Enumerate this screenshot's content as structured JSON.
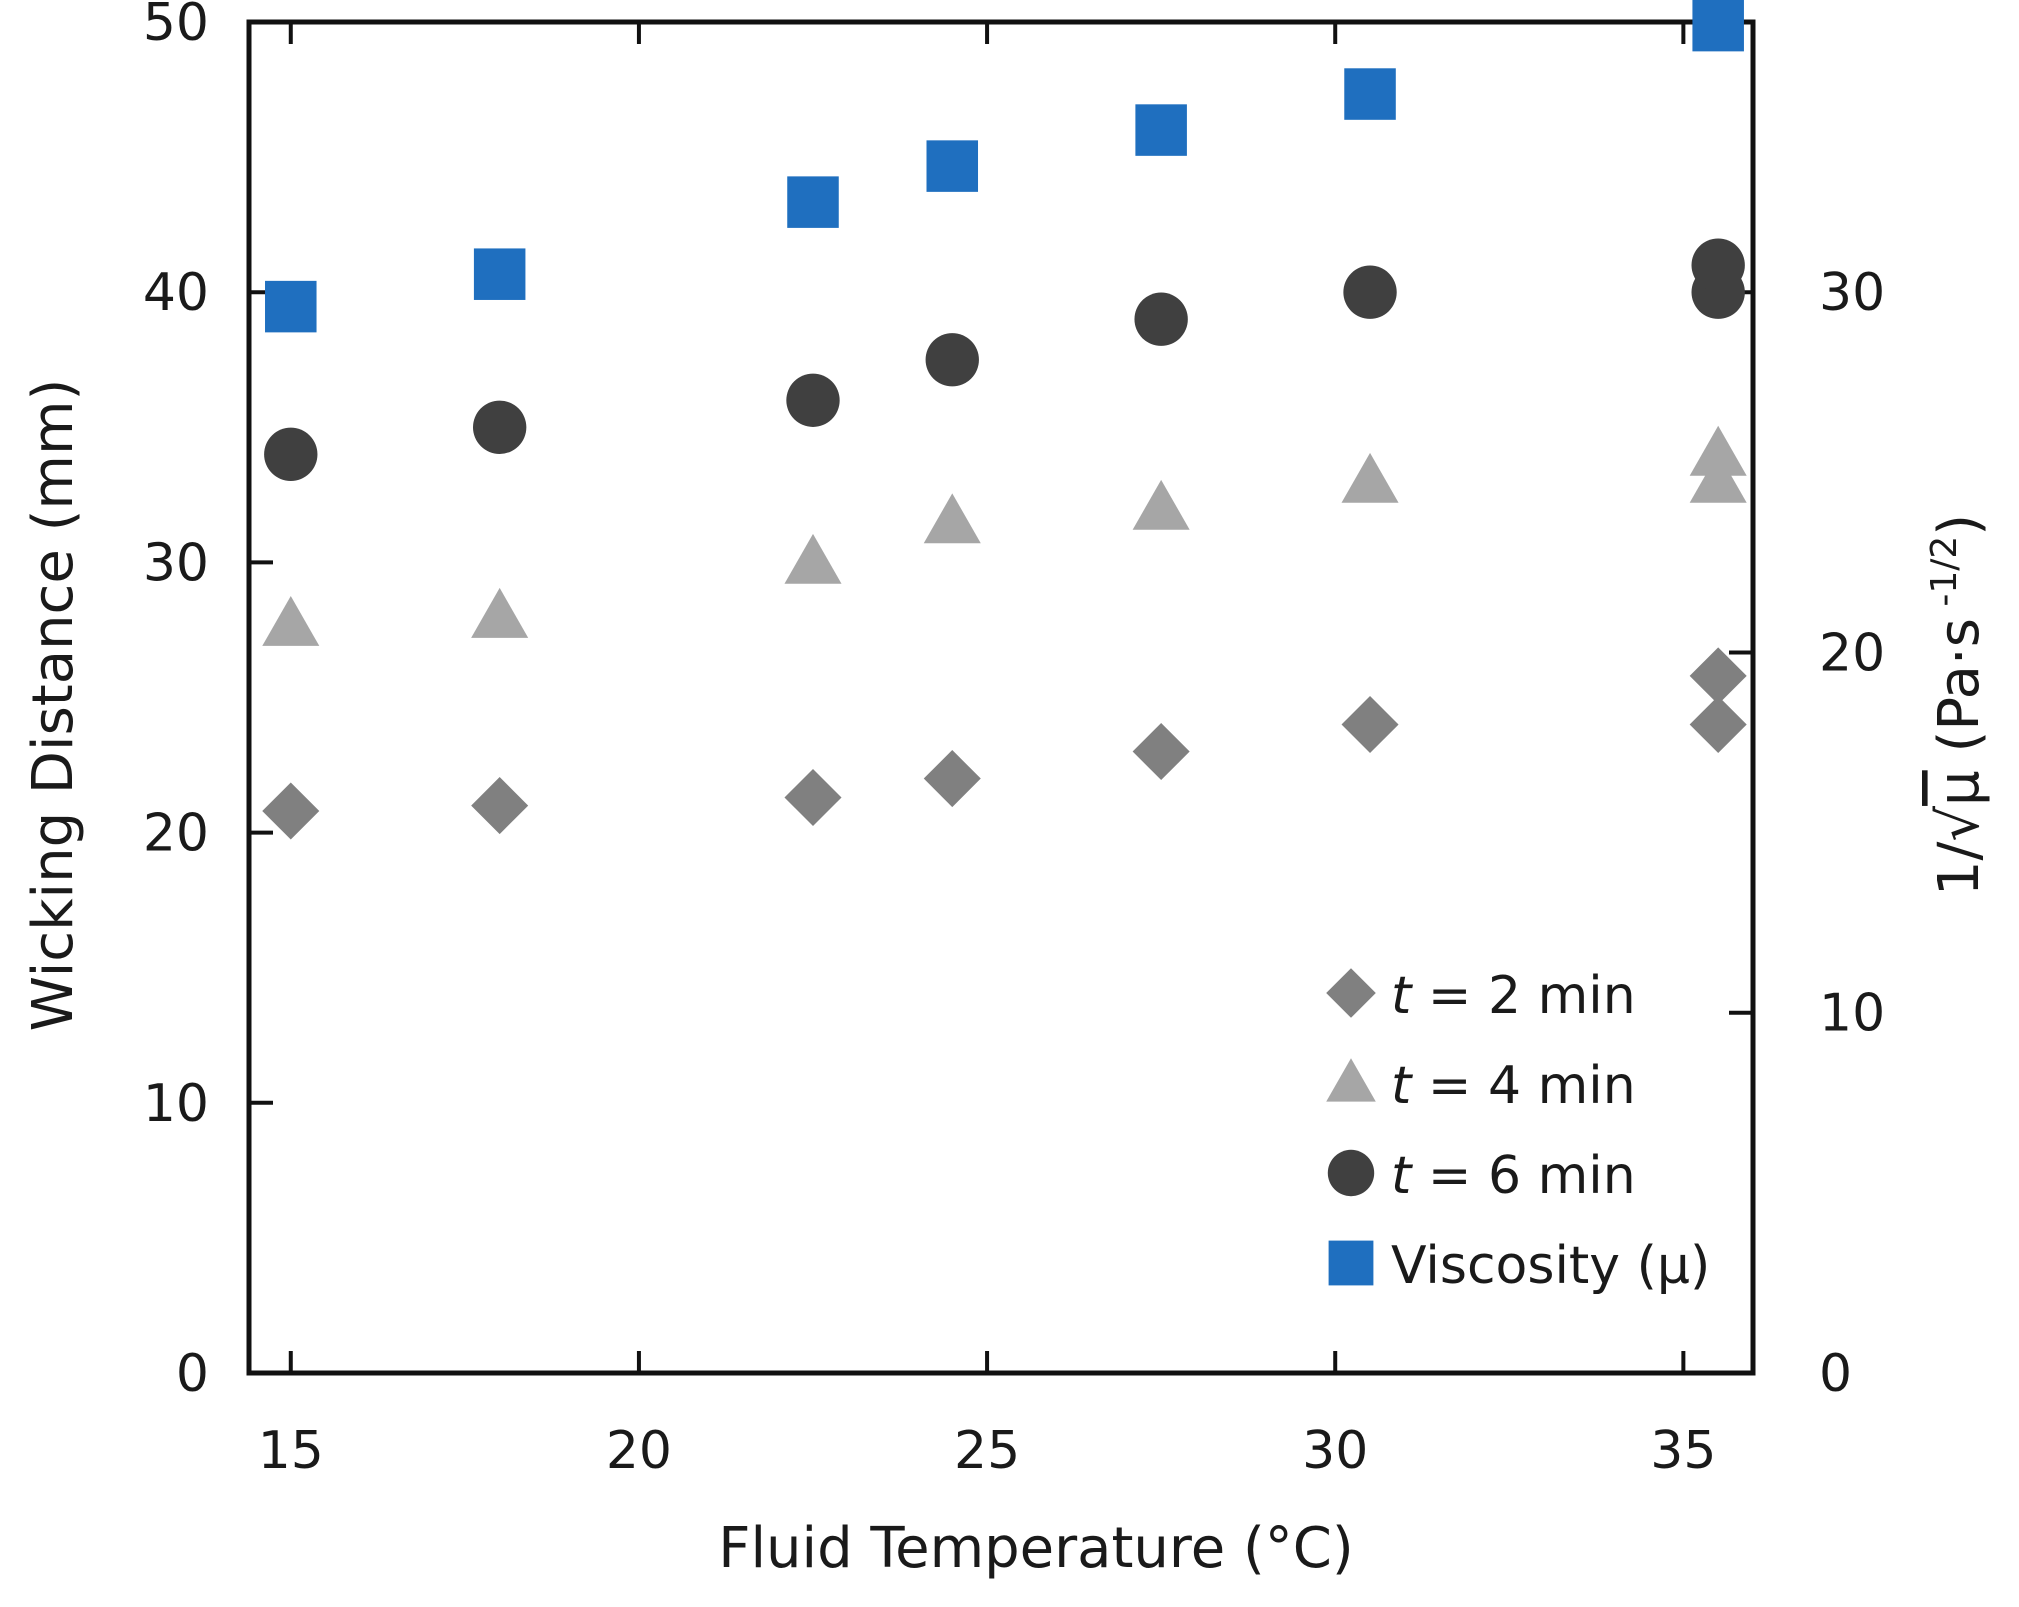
{
  "chart_data": {
    "type": "scatter",
    "title": "",
    "xlabel": "Fluid Temperature (°C)",
    "ylabel": "Wicking Distance (mm)",
    "y2label": {
      "prefix": "1/",
      "radical": "√",
      "mu": "μ",
      "units_open": " (Pa·s",
      "exponent": " -1/2",
      "units_close": ")"
    },
    "xlim": [
      14.4,
      36.0
    ],
    "ylim": [
      0,
      50
    ],
    "y2lim": [
      0,
      37.5
    ],
    "xticks": [
      15,
      20,
      25,
      30,
      35
    ],
    "yticks": [
      0,
      10,
      20,
      30,
      40,
      50
    ],
    "y2ticks": [
      0,
      10,
      20,
      30
    ],
    "grid": false,
    "legend_position": "bottom-right",
    "series": [
      {
        "name": "t = 2 min",
        "legend_var": "t",
        "legend_rest": " = 2 min",
        "marker": "diamond",
        "color": "#808080",
        "axis": "left",
        "x": [
          15,
          18,
          22.5,
          24.5,
          27.5,
          30.5,
          35.5,
          35.5
        ],
        "y": [
          20.8,
          21,
          21.3,
          22,
          23,
          24,
          24,
          25.8
        ]
      },
      {
        "name": "t = 4 min",
        "legend_var": "t",
        "legend_rest": " = 4 min",
        "marker": "triangle",
        "color": "#a6a6a6",
        "axis": "left",
        "x": [
          15,
          18,
          22.5,
          24.5,
          27.5,
          30.5,
          35.5,
          35.5
        ],
        "y": [
          27.7,
          28,
          30,
          31.5,
          32,
          33,
          33,
          34
        ]
      },
      {
        "name": "t = 6 min",
        "legend_var": "t",
        "legend_rest": " = 6 min",
        "marker": "circle",
        "color": "#404040",
        "axis": "left",
        "x": [
          15,
          18,
          22.5,
          24.5,
          27.5,
          30.5,
          35.5,
          35.5
        ],
        "y": [
          34,
          35,
          36,
          37.5,
          39,
          40,
          40,
          41
        ]
      },
      {
        "name": "Viscosity (μ)",
        "legend_var": "",
        "legend_rest": "Viscosity (μ)",
        "marker": "square",
        "color": "#1f6fbf",
        "axis": "right",
        "x": [
          15,
          18,
          22.5,
          24.5,
          27.5,
          30.5,
          35.5
        ],
        "y": [
          29.6,
          30.5,
          32.5,
          33.5,
          34.5,
          35.5,
          37.4
        ]
      }
    ]
  }
}
